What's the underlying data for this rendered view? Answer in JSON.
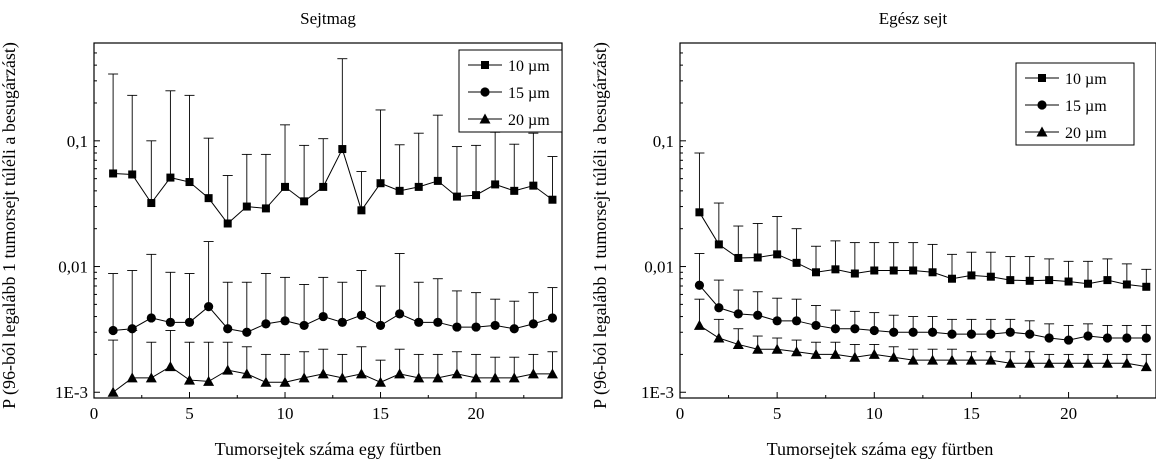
{
  "chart_data": [
    {
      "type": "line",
      "title": "Sejtmag",
      "xlabel": "Tumorsejtek száma egy fürtben",
      "ylabel": "P (96-ból legalább 1 tumorsejt túléli a besugárzást)",
      "xlim": [
        0,
        24.5
      ],
      "ylim": [
        0.0009,
        0.6
      ],
      "yscale": "log",
      "x_ticks": [
        0,
        5,
        10,
        15,
        20
      ],
      "x_tick_labels": [
        "0",
        "5",
        "10",
        "15",
        "20"
      ],
      "y_ticks": [
        0.001,
        0.01,
        0.1
      ],
      "y_tick_labels": [
        "1E-3",
        "0,01",
        "0,1"
      ],
      "legend_position": "top-right",
      "error_bars": "upper",
      "x": [
        1,
        2,
        3,
        4,
        5,
        6,
        7,
        8,
        9,
        10,
        11,
        12,
        13,
        14,
        15,
        16,
        17,
        18,
        19,
        20,
        21,
        22,
        23,
        24
      ],
      "series": [
        {
          "name": "10 µm",
          "marker": "square",
          "values": [
            0.055,
            0.054,
            0.032,
            0.051,
            0.047,
            0.035,
            0.022,
            0.03,
            0.029,
            0.043,
            0.033,
            0.043,
            0.086,
            0.028,
            0.046,
            0.04,
            0.043,
            0.048,
            0.036,
            0.037,
            0.045,
            0.04,
            0.044,
            0.034
          ],
          "err_upper": [
            0.34,
            0.23,
            0.1,
            0.25,
            0.23,
            0.105,
            0.053,
            0.078,
            0.078,
            0.134,
            0.092,
            0.104,
            0.45,
            0.057,
            0.176,
            0.093,
            0.115,
            0.16,
            0.09,
            0.092,
            0.117,
            0.094,
            0.115,
            0.075
          ]
        },
        {
          "name": "15 µm",
          "marker": "circle",
          "values": [
            0.0031,
            0.0032,
            0.0039,
            0.0036,
            0.0036,
            0.0048,
            0.0032,
            0.003,
            0.0035,
            0.0037,
            0.0034,
            0.004,
            0.0036,
            0.0041,
            0.0034,
            0.0042,
            0.0036,
            0.0036,
            0.0033,
            0.0033,
            0.0034,
            0.0032,
            0.0035,
            0.0039
          ],
          "err_upper": [
            0.0088,
            0.0093,
            0.0125,
            0.009,
            0.0088,
            0.0158,
            0.0075,
            0.0075,
            0.0088,
            0.0082,
            0.0072,
            0.0082,
            0.0075,
            0.0093,
            0.007,
            0.0127,
            0.0075,
            0.008,
            0.0064,
            0.0062,
            0.0055,
            0.0053,
            0.0062,
            0.0068
          ]
        },
        {
          "name": "20 µm",
          "marker": "triangle",
          "values": [
            0.001,
            0.0013,
            0.0013,
            0.0016,
            0.00125,
            0.00122,
            0.0015,
            0.0014,
            0.0012,
            0.0012,
            0.0013,
            0.0014,
            0.0013,
            0.0014,
            0.0012,
            0.0014,
            0.0013,
            0.0013,
            0.0014,
            0.0013,
            0.0013,
            0.0013,
            0.0014,
            0.0014
          ],
          "err_upper": [
            0.0026,
            0.0031,
            0.0025,
            0.0031,
            0.0025,
            0.0025,
            0.0025,
            0.0023,
            0.002,
            0.002,
            0.0021,
            0.0022,
            0.002,
            0.0023,
            0.0018,
            0.0022,
            0.002,
            0.002,
            0.0021,
            0.002,
            0.0019,
            0.0019,
            0.002,
            0.0021
          ]
        }
      ]
    },
    {
      "type": "line",
      "title": "Egész sejt",
      "xlabel": "Tumorsejtek száma egy fürtben",
      "ylabel": "P (96-ból legalább 1 tumorsejt túléli a besugárzást)",
      "xlim": [
        0,
        24.5
      ],
      "ylim": [
        0.0009,
        0.6
      ],
      "yscale": "log",
      "x_ticks": [
        0,
        5,
        10,
        15,
        20
      ],
      "x_tick_labels": [
        "0",
        "5",
        "10",
        "15",
        "20"
      ],
      "y_ticks": [
        0.001,
        0.01,
        0.1
      ],
      "y_tick_labels": [
        "1E-3",
        "0,01",
        "0,1"
      ],
      "legend_position": "top-right",
      "error_bars": "upper",
      "x": [
        1,
        2,
        3,
        4,
        5,
        6,
        7,
        8,
        9,
        10,
        11,
        12,
        13,
        14,
        15,
        16,
        17,
        18,
        19,
        20,
        21,
        22,
        23,
        24
      ],
      "series": [
        {
          "name": "10 µm",
          "marker": "square",
          "values": [
            0.027,
            0.015,
            0.0117,
            0.0118,
            0.0125,
            0.0107,
            0.009,
            0.0095,
            0.0088,
            0.0093,
            0.0093,
            0.0093,
            0.009,
            0.008,
            0.0085,
            0.0083,
            0.0078,
            0.0077,
            0.0078,
            0.0076,
            0.0073,
            0.0078,
            0.0072,
            0.0069
          ],
          "err_upper": [
            0.08,
            0.032,
            0.021,
            0.022,
            0.025,
            0.02,
            0.0145,
            0.016,
            0.0155,
            0.0155,
            0.0155,
            0.0155,
            0.015,
            0.0125,
            0.013,
            0.013,
            0.012,
            0.012,
            0.0115,
            0.011,
            0.011,
            0.0115,
            0.0105,
            0.0095
          ]
        },
        {
          "name": "15 µm",
          "marker": "circle",
          "values": [
            0.0071,
            0.0047,
            0.0042,
            0.0041,
            0.0037,
            0.0037,
            0.0034,
            0.0032,
            0.0032,
            0.0031,
            0.003,
            0.003,
            0.003,
            0.0029,
            0.0029,
            0.0029,
            0.003,
            0.0029,
            0.0027,
            0.0026,
            0.0028,
            0.0027,
            0.0027,
            0.0027
          ],
          "err_upper": [
            0.0127,
            0.0078,
            0.0065,
            0.0063,
            0.0056,
            0.0055,
            0.0049,
            0.0045,
            0.0044,
            0.0043,
            0.0041,
            0.004,
            0.004,
            0.0038,
            0.0038,
            0.0038,
            0.0038,
            0.0037,
            0.0035,
            0.0034,
            0.0035,
            0.0034,
            0.0034,
            0.0034
          ]
        },
        {
          "name": "20 µm",
          "marker": "triangle",
          "values": [
            0.0034,
            0.0027,
            0.0024,
            0.0022,
            0.0022,
            0.0021,
            0.002,
            0.002,
            0.0019,
            0.002,
            0.0019,
            0.0018,
            0.0018,
            0.0018,
            0.0018,
            0.0018,
            0.0017,
            0.0017,
            0.0017,
            0.0017,
            0.0017,
            0.0017,
            0.0017,
            0.0016
          ],
          "err_upper": [
            0.0055,
            0.0038,
            0.0032,
            0.0028,
            0.0027,
            0.0026,
            0.0025,
            0.0025,
            0.0024,
            0.0024,
            0.0023,
            0.0022,
            0.0022,
            0.0022,
            0.0021,
            0.0021,
            0.0021,
            0.0021,
            0.002,
            0.002,
            0.002,
            0.002,
            0.002,
            0.002
          ]
        }
      ]
    }
  ]
}
